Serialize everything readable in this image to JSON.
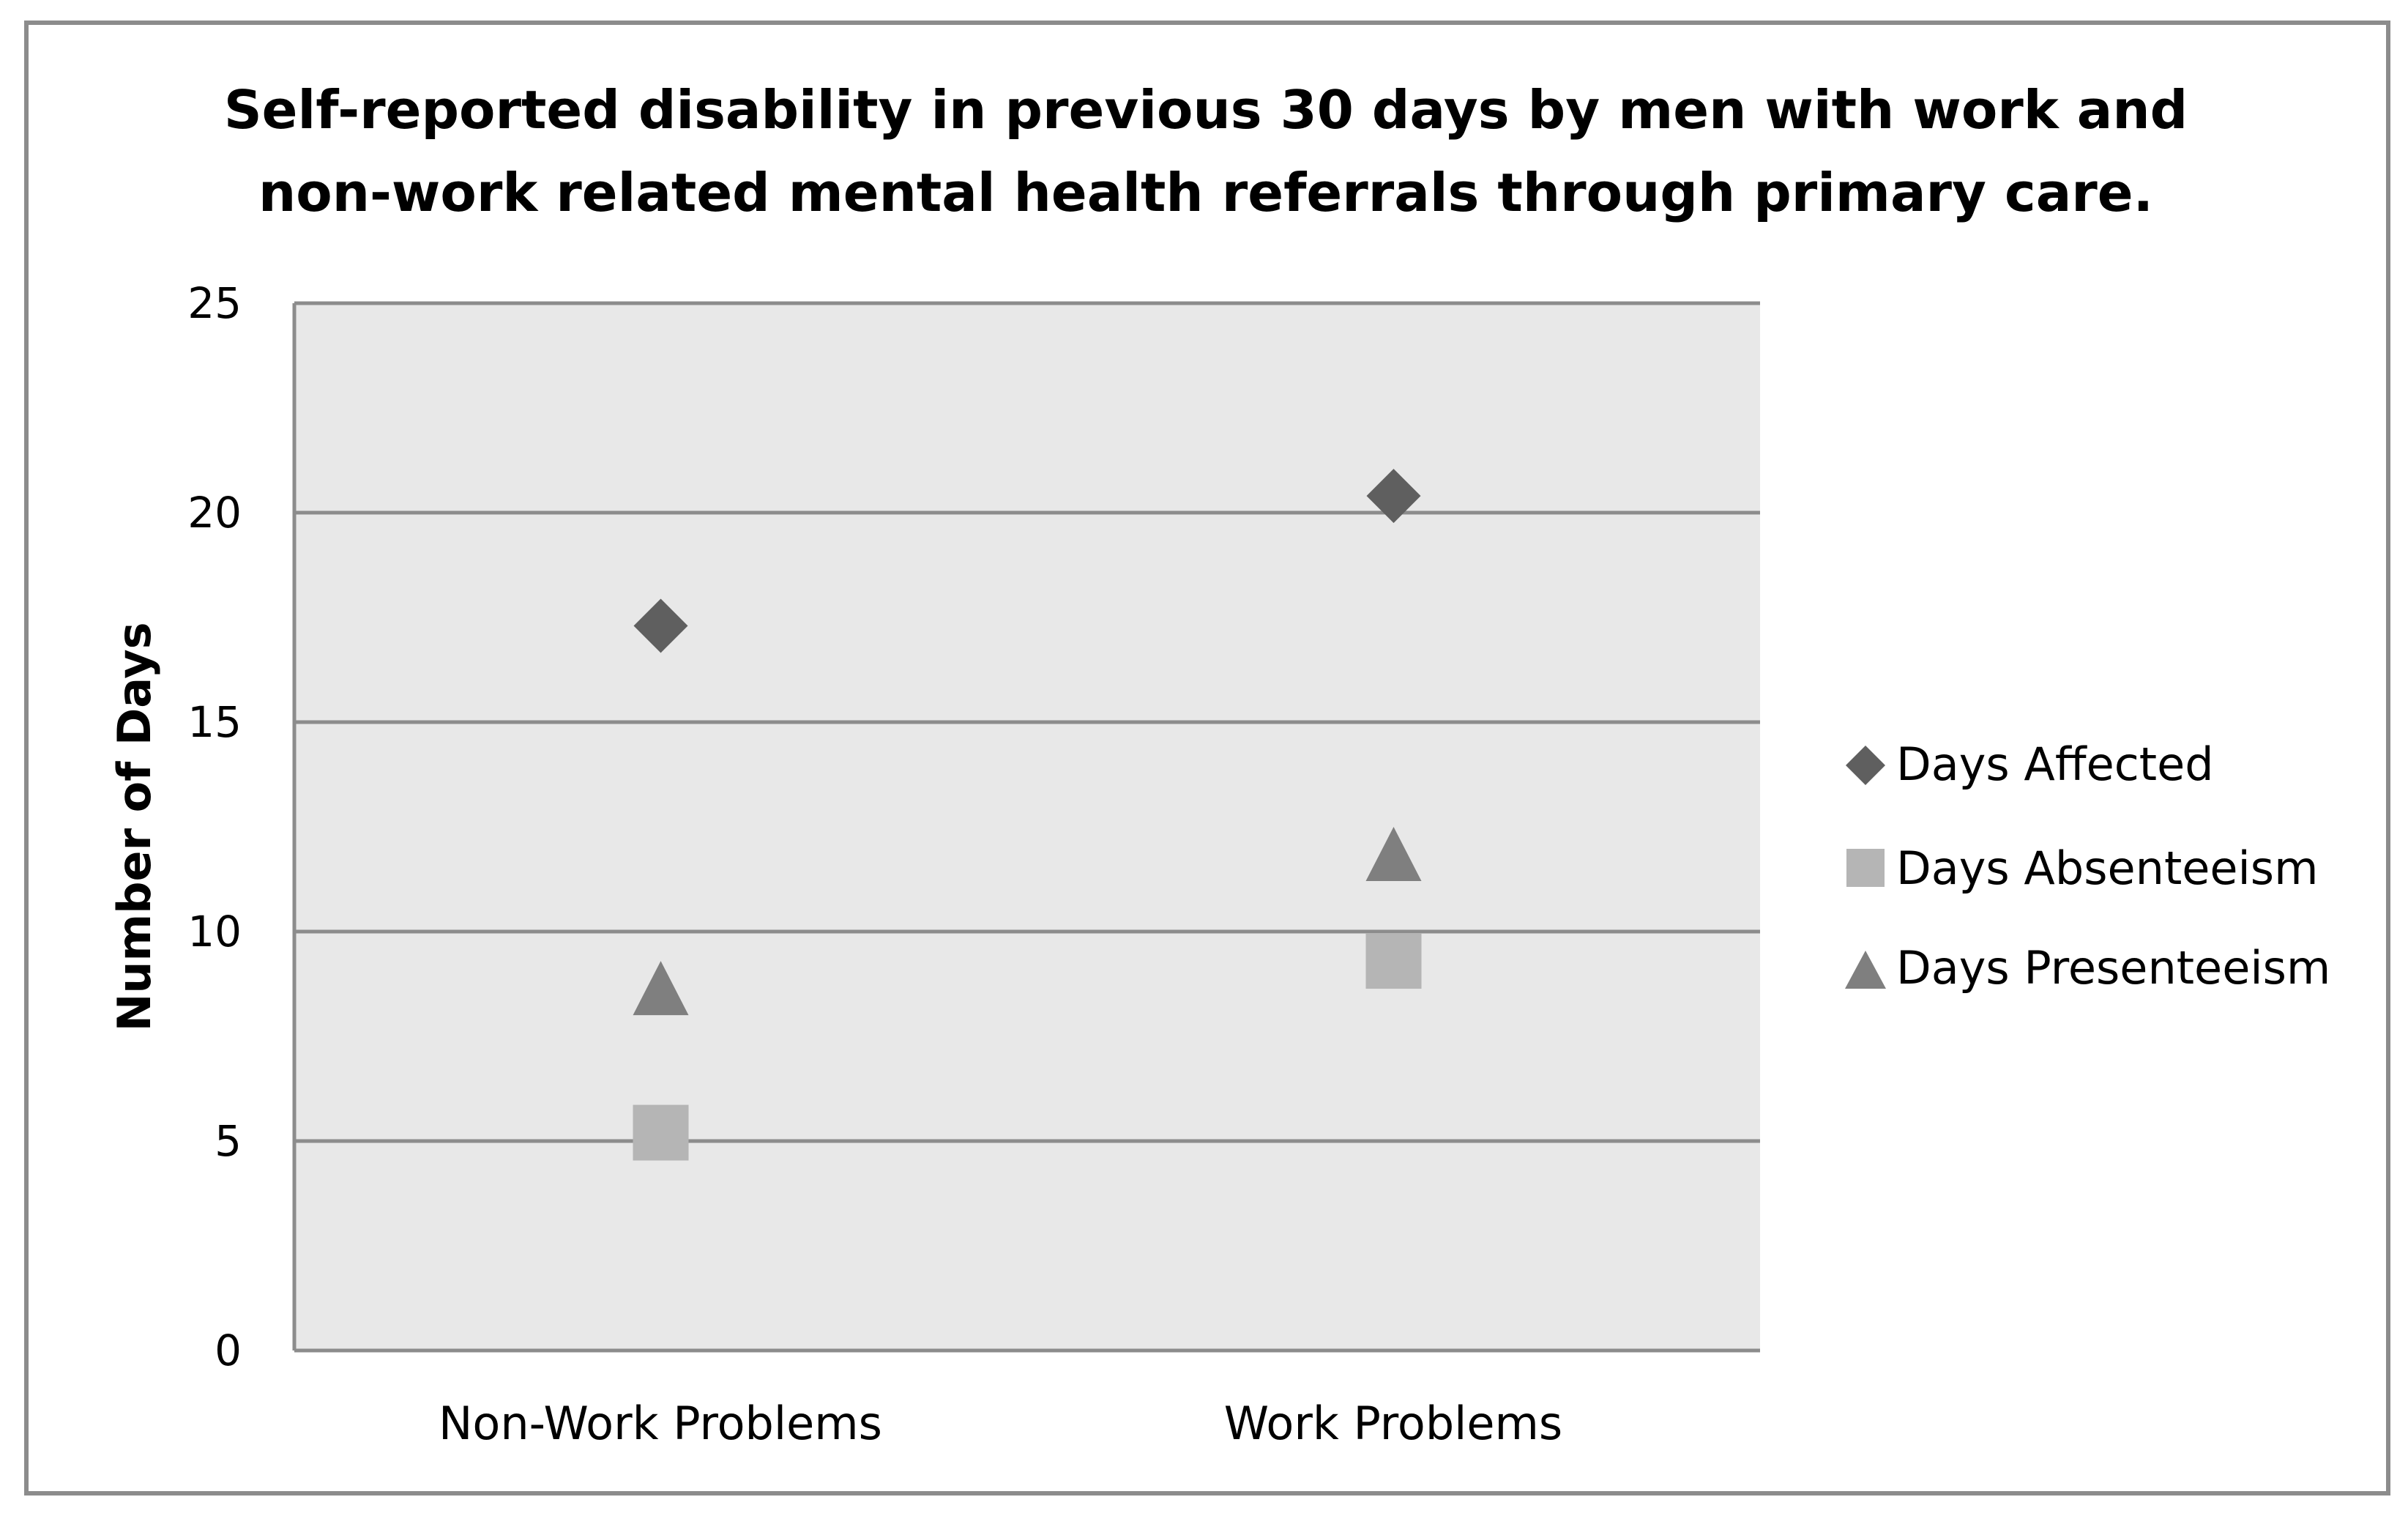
{
  "chart_data": {
    "type": "scatter",
    "title_lines": [
      "Self-reported disability in previous 30 days by men with work and",
      "non-work related mental health referrals through primary care."
    ],
    "ylabel": "Number of Days",
    "xlabel": "",
    "ylim": [
      0,
      25
    ],
    "yticks": [
      0,
      5,
      10,
      15,
      20,
      25
    ],
    "grid": true,
    "legend_position": "right",
    "categories": [
      "Non-Work Problems",
      "Work Problems"
    ],
    "series": [
      {
        "name": "Days Affected",
        "marker": "diamond",
        "color": "#5f5f5f",
        "values": [
          17.3,
          20.4
        ]
      },
      {
        "name": "Days Absenteeism",
        "marker": "square",
        "color": "#b5b5b5",
        "values": [
          5.2,
          9.3
        ]
      },
      {
        "name": "Days Presenteeism",
        "marker": "triangle",
        "color": "#7f7f7f",
        "values": [
          8.6,
          11.8
        ]
      }
    ]
  },
  "colors": {
    "plot_background": "#e8e8e8",
    "gridline": "#8c8c8c",
    "border": "#8c8c8c"
  }
}
